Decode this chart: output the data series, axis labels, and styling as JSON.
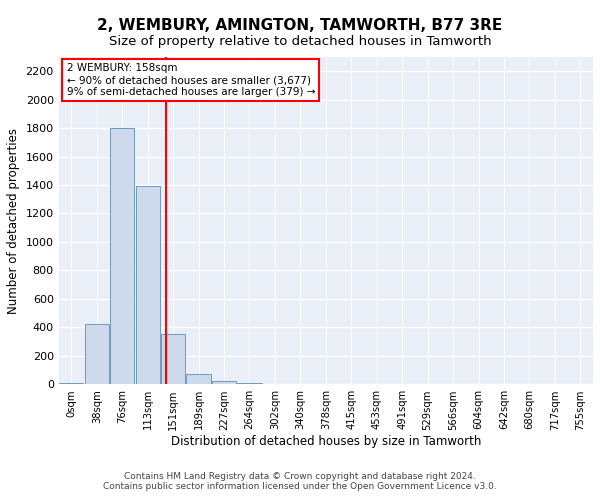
{
  "title": "2, WEMBURY, AMINGTON, TAMWORTH, B77 3RE",
  "subtitle": "Size of property relative to detached houses in Tamworth",
  "xlabel": "Distribution of detached houses by size in Tamworth",
  "ylabel": "Number of detached properties",
  "bar_color": "#ccdaeb",
  "bar_edge_color": "#7099bb",
  "bar_values": [
    10,
    420,
    1800,
    1390,
    355,
    75,
    25,
    10,
    2,
    0,
    0,
    0,
    0,
    0,
    0,
    0,
    0,
    0,
    0,
    0,
    0
  ],
  "bar_labels": [
    "0sqm",
    "38sqm",
    "76sqm",
    "113sqm",
    "151sqm",
    "189sqm",
    "227sqm",
    "264sqm",
    "302sqm",
    "340sqm",
    "378sqm",
    "415sqm",
    "453sqm",
    "491sqm",
    "529sqm",
    "566sqm",
    "604sqm",
    "642sqm",
    "680sqm",
    "717sqm",
    "755sqm"
  ],
  "ylim": [
    0,
    2300
  ],
  "yticks": [
    0,
    200,
    400,
    600,
    800,
    1000,
    1200,
    1400,
    1600,
    1800,
    2000,
    2200
  ],
  "property_name": "2 WEMBURY: 158sqm",
  "annotation_line1": "← 90% of detached houses are smaller (3,677)",
  "annotation_line2": "9% of semi-detached houses are larger (379) →",
  "vline_x": 3.72,
  "footer_line1": "Contains HM Land Registry data © Crown copyright and database right 2024.",
  "footer_line2": "Contains public sector information licensed under the Open Government Licence v3.0.",
  "background_color": "#eaeff7",
  "grid_color": "#ffffff"
}
